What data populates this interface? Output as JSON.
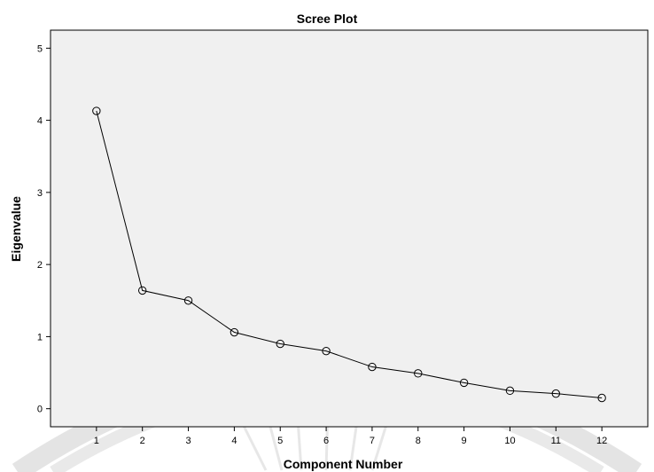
{
  "chart_data": {
    "type": "line",
    "title": "Scree Plot",
    "xlabel": "Component Number",
    "ylabel": "Eigenvalue",
    "x": [
      1,
      2,
      3,
      4,
      5,
      6,
      7,
      8,
      9,
      10,
      11,
      12
    ],
    "y": [
      4.13,
      1.64,
      1.5,
      1.06,
      0.9,
      0.8,
      0.58,
      0.49,
      0.36,
      0.25,
      0.21,
      0.15
    ],
    "xlim": [
      0,
      13
    ],
    "ylim": [
      -0.25,
      5.25
    ],
    "yticks": [
      0,
      1,
      2,
      3,
      4,
      5
    ],
    "xticks": [
      1,
      2,
      3,
      4,
      5,
      6,
      7,
      8,
      9,
      10,
      11,
      12
    ],
    "grid": false,
    "plot_background": "#f0f0f0",
    "line_color": "#000000",
    "marker": "open-circle"
  }
}
